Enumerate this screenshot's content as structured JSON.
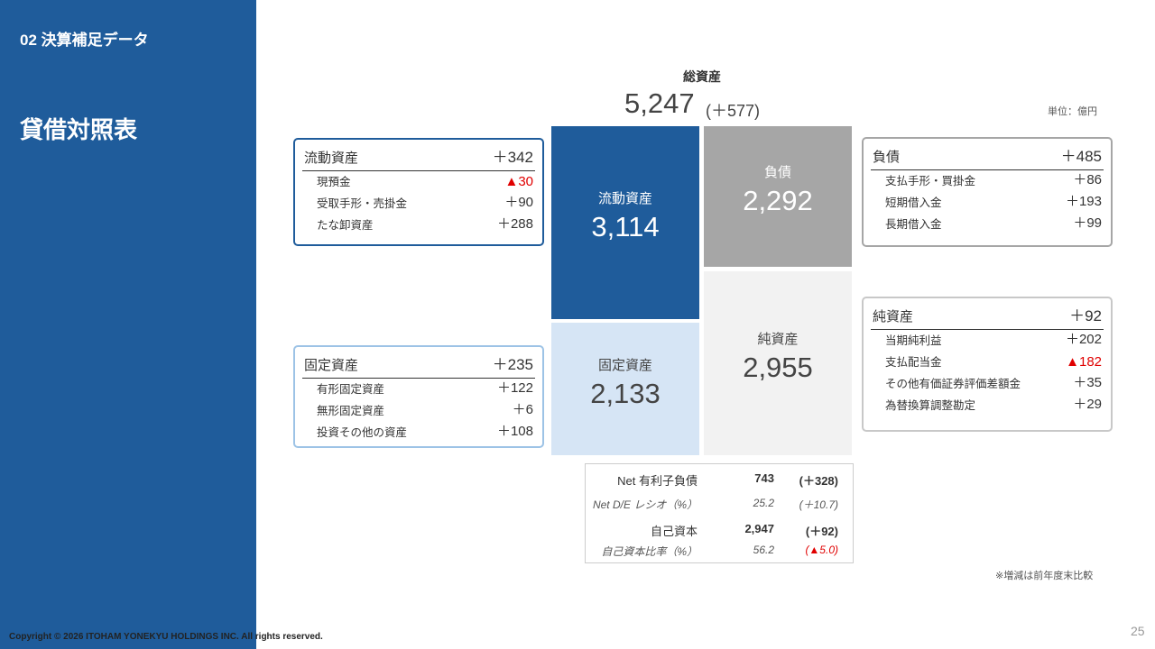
{
  "sidebar": {
    "section": "02 決算補足データ",
    "title": "貸借対照表"
  },
  "total": {
    "label": "総資産",
    "value": "5,247",
    "change": "(＋577)"
  },
  "unit": "単位：億円",
  "boxes": [
    {
      "label": "流動資産",
      "change": "＋342",
      "border": "#1f5c9b",
      "items": [
        {
          "label": "現預金",
          "value": "▲30",
          "color": "#e00000"
        },
        {
          "label": "受取手形・売掛金",
          "value": "＋90"
        },
        {
          "label": "たな卸資産",
          "value": "＋288"
        }
      ]
    },
    {
      "label": "固定資産",
      "change": "＋235",
      "border": "#9dc3e6",
      "items": [
        {
          "label": "有形固定資産",
          "value": "＋122"
        },
        {
          "label": "無形固定資産",
          "value": "＋6"
        },
        {
          "label": "投資その他の資産",
          "value": "＋108"
        }
      ]
    },
    {
      "label": "負債",
      "change": "＋485",
      "border": "#a6a6a6",
      "items": [
        {
          "label": "支払手形・買掛金",
          "value": "＋86"
        },
        {
          "label": "短期借入金",
          "value": "＋193"
        },
        {
          "label": "長期借入金",
          "value": "＋99"
        }
      ]
    },
    {
      "label": "純資産",
      "change": "＋92",
      "border": "#c8c8c8",
      "items": [
        {
          "label": "当期純利益",
          "value": "＋202"
        },
        {
          "label": "支払配当金",
          "value": "▲182",
          "color": "#e00000"
        },
        {
          "label": "その他有価証券評価差額金",
          "value": "＋35"
        },
        {
          "label": "為替換算調整勘定",
          "value": "＋29"
        }
      ]
    }
  ],
  "blocks": [
    {
      "label": "流動資産",
      "value": "3,114",
      "color": "#1f5c9b"
    },
    {
      "label": "固定資産",
      "value": "2,133",
      "color": "#d6e5f5"
    },
    {
      "label": "負債",
      "value": "2,292",
      "color": "#a6a6a6"
    },
    {
      "label": "純資産",
      "value": "2,955",
      "color": "#f2f2f2"
    }
  ],
  "table": {
    "rows": [
      {
        "label": "Net 有利子負債",
        "value": "743",
        "change": "(＋328)"
      },
      {
        "label": "Net D/E レシオ（%）",
        "value": "25.2",
        "change": "(＋10.7)"
      },
      {
        "label": "自己資本",
        "value": "2,947",
        "change": "(＋92)"
      },
      {
        "label": "自己資本比率（%）",
        "value": "56.2",
        "change": "(▲5.0)",
        "color": "#e00000"
      }
    ]
  },
  "note": "※増減は前年度末比較",
  "page_number": "25",
  "copyright": "Copyright © 2026 ITOHAM YONEKYU HOLDINGS INC. All rights reserved."
}
